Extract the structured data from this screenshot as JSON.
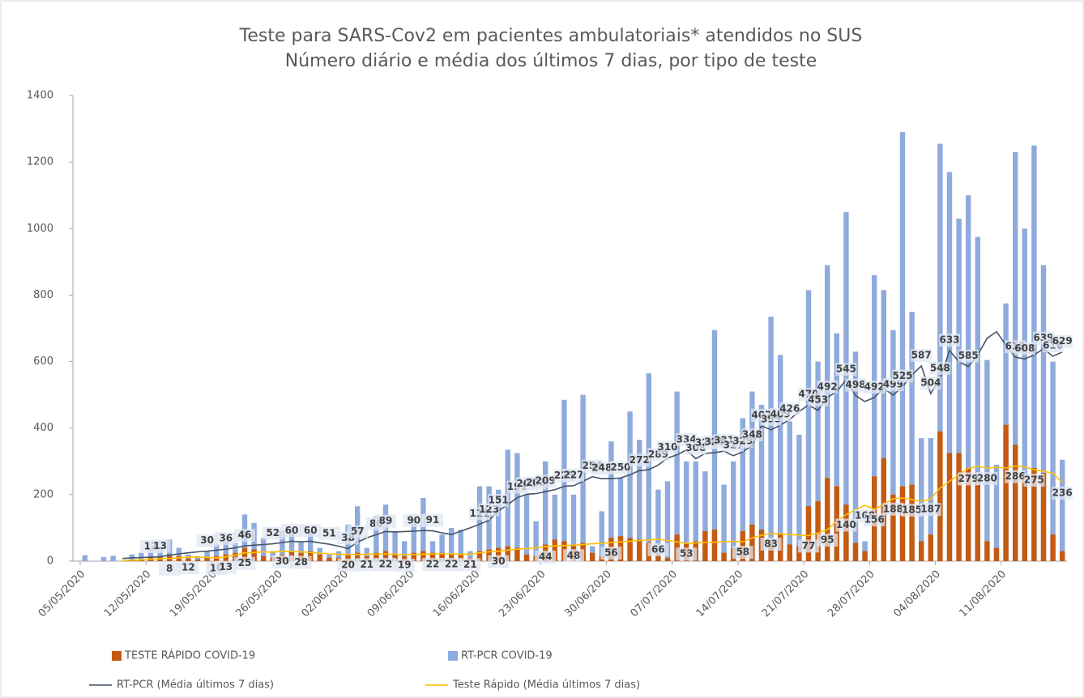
{
  "chart_data": {
    "type": "bar",
    "title": "Teste para SARS-Cov2 em pacientes ambulatoriais* atendidos no SUS",
    "subtitle": "Número diário e média dos últimos 7 dias, por tipo de teste",
    "categories": [
      "05/05/2020",
      null,
      null,
      null,
      null,
      null,
      null,
      "12/05/2020",
      null,
      null,
      null,
      null,
      null,
      null,
      "19/05/2020",
      null,
      null,
      null,
      null,
      null,
      null,
      "26/05/2020",
      null,
      null,
      null,
      null,
      null,
      null,
      "02/06/2020",
      null,
      null,
      null,
      null,
      null,
      null,
      "09/06/2020",
      null,
      null,
      null,
      null,
      null,
      null,
      "16/06/2020",
      null,
      null,
      null,
      null,
      null,
      null,
      "23/06/2020",
      null,
      null,
      null,
      null,
      null,
      null,
      "30/06/2020",
      null,
      null,
      null,
      null,
      null,
      null,
      "07/07/2020",
      null,
      null,
      null,
      null,
      null,
      null,
      "14/07/2020",
      null,
      null,
      null,
      null,
      null,
      null,
      "21/07/2020",
      null,
      null,
      null,
      null,
      null,
      null,
      "28/07/2020",
      null,
      null,
      null,
      null,
      null,
      null,
      "04/08/2020",
      null,
      null,
      null,
      null,
      null,
      null,
      "11/08/2020",
      null,
      null,
      null,
      null,
      null,
      null
    ],
    "ylim": [
      0,
      1400
    ],
    "yticks": [
      0,
      200,
      400,
      600,
      800,
      1000,
      1200,
      1400
    ],
    "grid": false,
    "series": [
      {
        "name": "RT-PCR COVID-19",
        "kind": "bar",
        "color": "#8faadc",
        "values": [
          18,
          0,
          12,
          16,
          0,
          20,
          25,
          40,
          45,
          65,
          40,
          20,
          15,
          30,
          50,
          60,
          55,
          140,
          115,
          70,
          30,
          90,
          100,
          60,
          90,
          40,
          20,
          30,
          110,
          165,
          40,
          135,
          170,
          90,
          60,
          130,
          190,
          60,
          80,
          100,
          95,
          30,
          225,
          225,
          215,
          335,
          325,
          200,
          120,
          300,
          200,
          485,
          200,
          500,
          45,
          150,
          360,
          250,
          450,
          365,
          565,
          215,
          240,
          510,
          300,
          300,
          270,
          695,
          230,
          300,
          430,
          510,
          470,
          735,
          620,
          420,
          380,
          815,
          600,
          890,
          685,
          1050,
          630,
          60,
          860,
          815,
          695,
          1290,
          750,
          370,
          370,
          1255,
          1170,
          1030,
          1100,
          975,
          605,
          290,
          775,
          1230,
          1000,
          1250,
          890,
          600,
          305
        ]
      },
      {
        "name": "TESTE RÁPIDO COVID-19",
        "kind": "bar",
        "color": "#c55a11",
        "values": [
          0,
          0,
          0,
          0,
          0,
          3,
          5,
          10,
          15,
          20,
          15,
          8,
          5,
          10,
          15,
          20,
          25,
          40,
          35,
          15,
          10,
          20,
          30,
          25,
          30,
          20,
          10,
          10,
          20,
          25,
          15,
          25,
          30,
          20,
          15,
          25,
          30,
          25,
          25,
          20,
          20,
          10,
          30,
          35,
          40,
          45,
          40,
          20,
          15,
          50,
          65,
          60,
          50,
          55,
          25,
          15,
          70,
          75,
          70,
          65,
          55,
          20,
          10,
          80,
          55,
          60,
          90,
          95,
          25,
          40,
          90,
          110,
          95,
          60,
          80,
          50,
          45,
          165,
          180,
          250,
          225,
          170,
          55,
          30,
          255,
          310,
          200,
          225,
          230,
          60,
          80,
          390,
          325,
          325,
          280,
          240,
          60,
          40,
          410,
          350,
          250,
          280,
          265,
          80,
          30
        ]
      },
      {
        "name": "RT-PCR (Média últimos 7 dias)",
        "kind": "line",
        "color": "#44546a",
        "values": [
          null,
          null,
          null,
          null,
          8,
          10,
          11,
          12,
          13,
          18,
          22,
          25,
          28,
          30,
          33,
          36,
          40,
          46,
          48,
          50,
          52,
          56,
          60,
          58,
          60,
          55,
          51,
          45,
          38,
          57,
          70,
          80,
          89,
          88,
          89,
          90,
          92,
          91,
          85,
          80,
          90,
          100,
          111,
          123,
          151,
          170,
          191,
          201,
          203,
          209,
          215,
          225,
          227,
          240,
          254,
          248,
          248,
          250,
          260,
          272,
          275,
          289,
          310,
          320,
          334,
          308,
          324,
          326,
          331,
          317,
          329,
          348,
          407,
          395,
          409,
          426,
          450,
          470,
          453,
          492,
          510,
          545,
          498,
          480,
          492,
          520,
          499,
          525,
          560,
          587,
          504,
          548,
          633,
          600,
          585,
          620,
          670,
          690,
          650,
          613,
          608,
          620,
          639,
          616,
          629
        ],
        "value_labels": [
          null,
          null,
          null,
          null,
          null,
          null,
          null,
          12,
          13,
          null,
          null,
          null,
          null,
          30,
          null,
          36,
          null,
          46,
          null,
          null,
          52,
          null,
          60,
          null,
          60,
          null,
          51,
          null,
          38,
          57,
          null,
          80,
          89,
          null,
          null,
          90,
          null,
          91,
          null,
          null,
          null,
          null,
          111,
          123,
          151,
          null,
          191,
          201,
          203,
          209,
          null,
          225,
          227,
          null,
          254,
          248,
          null,
          250,
          null,
          272,
          null,
          289,
          310,
          null,
          334,
          308,
          324,
          326,
          331,
          317,
          329,
          348,
          407,
          395,
          409,
          426,
          null,
          470,
          453,
          492,
          null,
          545,
          498,
          null,
          492,
          null,
          499,
          525,
          null,
          587,
          504,
          548,
          633,
          null,
          585,
          null,
          null,
          null,
          null,
          613,
          608,
          null,
          639,
          616,
          629
        ]
      },
      {
        "name": "Teste Rápido (Média últimos 7 dias)",
        "kind": "line",
        "color": "#ffc000",
        "values": [
          null,
          null,
          null,
          null,
          2,
          3,
          4,
          6,
          7,
          8,
          10,
          12,
          12,
          11,
          10,
          13,
          18,
          25,
          26,
          28,
          27,
          30,
          29,
          28,
          26,
          24,
          22,
          21,
          20,
          20,
          21,
          21,
          22,
          21,
          19,
          20,
          21,
          22,
          22,
          22,
          21,
          21,
          25,
          28,
          30,
          33,
          36,
          38,
          40,
          44,
          46,
          47,
          48,
          50,
          52,
          54,
          56,
          58,
          60,
          62,
          64,
          66,
          62,
          58,
          53,
          55,
          56,
          57,
          58,
          60,
          58,
          70,
          78,
          83,
          82,
          80,
          78,
          77,
          85,
          95,
          120,
          140,
          155,
          168,
          156,
          170,
          188,
          190,
          185,
          180,
          187,
          220,
          240,
          260,
          279,
          285,
          280,
          282,
          280,
          286,
          284,
          275,
          270,
          265,
          236
        ],
        "value_labels": [
          null,
          null,
          null,
          null,
          null,
          null,
          null,
          null,
          null,
          8,
          null,
          12,
          null,
          null,
          10,
          13,
          null,
          25,
          null,
          null,
          null,
          30,
          null,
          28,
          null,
          null,
          null,
          null,
          20,
          null,
          21,
          null,
          22,
          null,
          19,
          null,
          null,
          22,
          null,
          22,
          null,
          21,
          null,
          null,
          30,
          null,
          null,
          null,
          null,
          44,
          null,
          null,
          48,
          null,
          null,
          null,
          56,
          null,
          null,
          null,
          null,
          66,
          null,
          null,
          53,
          null,
          null,
          null,
          null,
          null,
          58,
          null,
          null,
          83,
          null,
          null,
          null,
          77,
          null,
          95,
          null,
          140,
          null,
          168,
          156,
          null,
          188,
          null,
          185,
          null,
          187,
          null,
          null,
          null,
          279,
          null,
          280,
          null,
          null,
          286,
          null,
          275,
          null,
          null,
          236
        ]
      }
    ]
  }
}
